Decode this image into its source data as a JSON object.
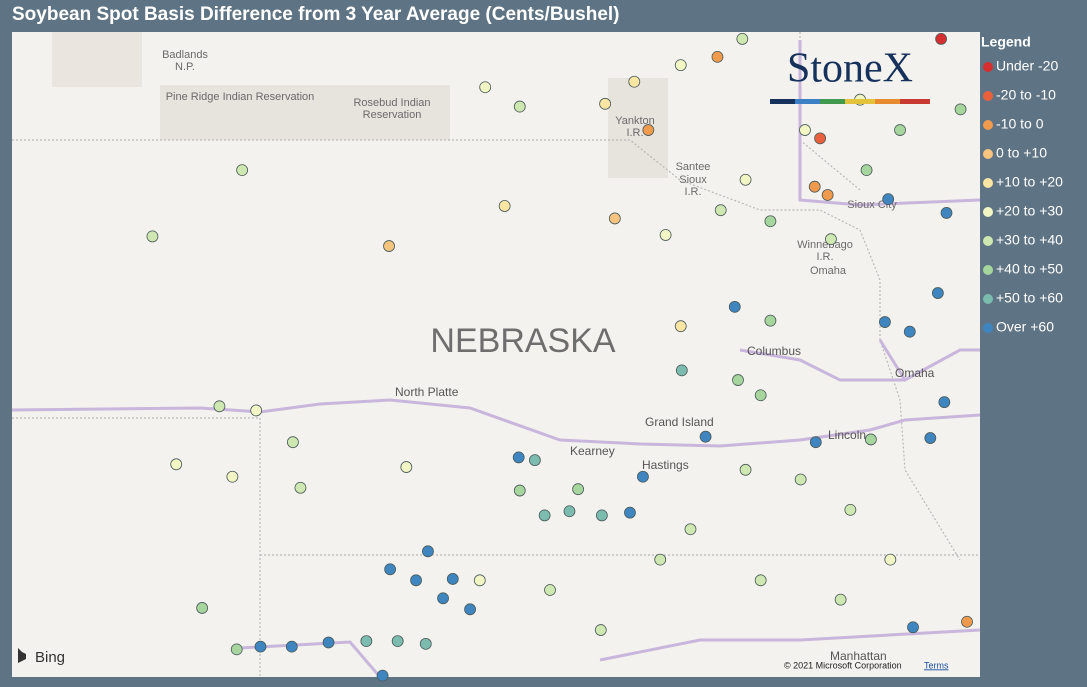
{
  "chart_data": {
    "type": "map",
    "title": "Soybean Spot Basis Difference from 3 Year Average (Cents/Bushel)",
    "legend_title": "Legend",
    "legend": [
      {
        "label": "Under -20",
        "color": "#d62f2f"
      },
      {
        "label": "-20 to -10",
        "color": "#e8603c"
      },
      {
        "label": "-10 to 0",
        "color": "#f09a4e"
      },
      {
        "label": "0 to +10",
        "color": "#f6c47e"
      },
      {
        "label": "+10 to +20",
        "color": "#f8e6a2"
      },
      {
        "label": "+20 to +30",
        "color": "#f2f6c4"
      },
      {
        "label": "+30 to +40",
        "color": "#cfe8b1"
      },
      {
        "label": "+40 to +50",
        "color": "#a6d69e"
      },
      {
        "label": "+50 to +60",
        "color": "#7bbcae"
      },
      {
        "label": "Over +60",
        "color": "#3f86c0"
      }
    ],
    "lonlim": [
      -104.29,
      -95.33
    ],
    "latlim": [
      39.12,
      43.79
    ],
    "points": {
      "lon": [
        -95.69,
        -96.81,
        -98.4,
        -96.86,
        -96.74,
        -97.76,
        -98.71,
        -100.8,
        -95.45,
        -99.73,
        -98.24,
        -98.1,
        -102.16,
        -102.99,
        -99.91,
        -99.59,
        -98.8,
        -98.53,
        -98.1,
        -97.53,
        -102.37,
        -102.03,
        -101.69,
        -102.77,
        -102.25,
        -100.64,
        -101.62,
        -102.53,
        -102.21,
        -101.99,
        -101.7,
        -101.36,
        -101.01,
        -100.86,
        -100.79,
        -100.55,
        -100.44,
        -100.21,
        -100.3,
        -100.05,
        -100.72,
        -100.46,
        -99.6,
        -99.45,
        -99.36,
        -99.13,
        -98.83,
        -98.57,
        -98.45,
        -99.05,
        -99.59,
        -98.09,
        -97.87,
        -97.6,
        -97.27,
        -96.85,
        -96.21,
        -95.98,
        -95.72,
        -95.64,
        -95.79,
        -95.66,
        -95.95,
        -96.18,
        -96.38,
        -97.57,
        -97.36,
        -97.5,
        -96.99,
        -96.53,
        -98.01,
        -97.36,
        -99.31,
        -98.84,
        -96.62,
        -96.34,
        -96.07,
        -95.51,
        -96.71,
        -97.27,
        -97.73,
        -98.29,
        -99.96,
        -96.16,
        -96.44,
        -96.95,
        -97.5
      ],
      "lat": [
        43.74,
        43.02,
        43.08,
        42.67,
        42.61,
        43.61,
        42.44,
        42.24,
        39.52,
        42.53,
        42.32,
        41.66,
        42.79,
        42.31,
        43.39,
        43.25,
        43.27,
        43.43,
        43.55,
        43.74,
        41.08,
        41.05,
        40.82,
        40.66,
        40.57,
        40.64,
        40.49,
        39.62,
        39.32,
        39.34,
        39.34,
        39.37,
        39.38,
        39.13,
        39.9,
        39.82,
        40.03,
        39.83,
        39.69,
        39.61,
        39.38,
        39.36,
        40.71,
        40.69,
        40.29,
        40.32,
        40.29,
        40.31,
        40.57,
        40.48,
        40.47,
        41.34,
        40.86,
        41.8,
        41.7,
        40.82,
        41.69,
        41.62,
        41.9,
        42.48,
        40.85,
        41.11,
        39.48,
        42.58,
        42.79,
        41.27,
        41.16,
        40.62,
        40.55,
        40.33,
        40.19,
        39.82,
        39.75,
        39.46,
        39.68,
        40.84,
        43.08,
        43.23,
        42.29,
        42.42,
        42.5,
        39.97,
        39.82,
        39.97,
        43.3,
        43.08,
        42.72
      ],
      "bin": [
        0,
        1,
        2,
        2,
        2,
        2,
        3,
        3,
        2,
        4,
        5,
        4,
        6,
        6,
        5,
        6,
        4,
        4,
        5,
        6,
        6,
        5,
        6,
        5,
        5,
        5,
        6,
        7,
        7,
        9,
        9,
        9,
        8,
        9,
        9,
        9,
        9,
        9,
        9,
        9,
        8,
        8,
        9,
        8,
        8,
        8,
        8,
        9,
        9,
        7,
        7,
        8,
        9,
        9,
        7,
        9,
        9,
        9,
        9,
        9,
        9,
        9,
        9,
        9,
        7,
        7,
        7,
        6,
        6,
        6,
        6,
        6,
        6,
        6,
        6,
        7,
        7,
        7,
        6,
        7,
        6,
        6,
        5,
        5,
        5,
        5,
        5
      ]
    }
  },
  "logo": "StoneX",
  "map_labels": [
    "Badlands",
    "N.P.",
    "Pine Ridge Indian Reservation",
    "Rosebud Indian",
    "Reservation",
    "Yankton",
    "I.R.",
    "Santee",
    "Sioux",
    "I.R.",
    "Sioux City",
    "Winnebago",
    "I.R.",
    "Omaha",
    "NEBRASKA",
    "North Platte",
    "Columbus",
    "Omaha",
    "Grand Island",
    "Kearney",
    "Hastings",
    "Lincoln",
    "Manhattan"
  ],
  "attribution": {
    "bing": "Bing",
    "copyright": "© 2021 Microsoft Corporation",
    "terms": "Terms"
  }
}
